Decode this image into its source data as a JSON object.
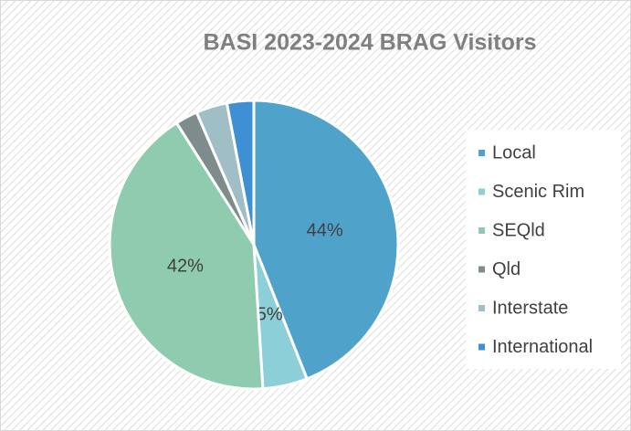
{
  "chart_data": {
    "type": "pie",
    "title": "BASI 2023-2024 BRAG Visitors",
    "categories": [
      "Local",
      "Scenic Rim",
      "SEQld",
      "Qld",
      "Interstate",
      "International"
    ],
    "values": [
      44,
      5,
      42,
      2.5,
      3.5,
      3
    ],
    "value_labels": [
      "44%",
      "5%",
      "42%",
      null,
      null,
      null
    ],
    "colors": [
      "#4fa3cb",
      "#8ccfd9",
      "#8fcbae",
      "#7f8c8c",
      "#9fbec6",
      "#3e8fd3"
    ],
    "legend": "right"
  }
}
